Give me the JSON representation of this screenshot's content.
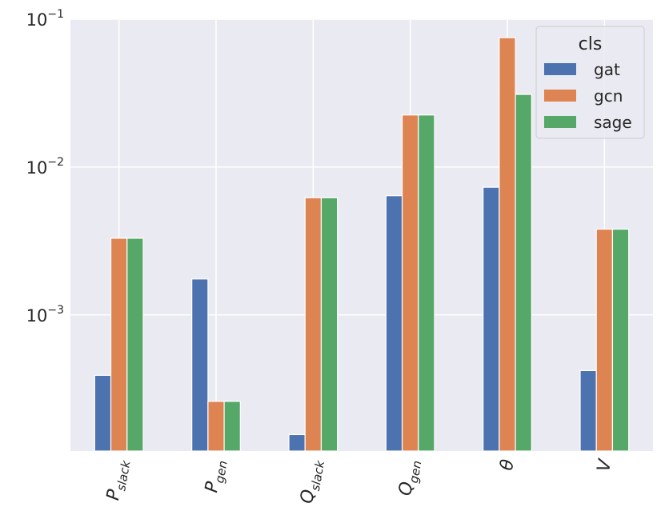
{
  "chart_data": {
    "type": "bar",
    "yscale": "log",
    "ylim": [
      0.00012,
      0.1
    ],
    "yticks": [
      {
        "value": 0.1,
        "base": "10",
        "exp": "−1"
      },
      {
        "value": 0.01,
        "base": "10",
        "exp": "−2"
      },
      {
        "value": 0.001,
        "base": "10",
        "exp": "−3"
      }
    ],
    "categories": [
      {
        "main": "P",
        "sub": "slack"
      },
      {
        "main": "P",
        "sub": "gen"
      },
      {
        "main": "Q",
        "sub": "slack"
      },
      {
        "main": "Q",
        "sub": "gen"
      },
      {
        "main": "θ",
        "sub": ""
      },
      {
        "main": "V",
        "sub": ""
      }
    ],
    "series": [
      {
        "name": "gat",
        "color": "#4c72b0",
        "values": [
          0.00039,
          0.00175,
          0.000155,
          0.0064,
          0.0073,
          0.00042
        ]
      },
      {
        "name": "gcn",
        "color": "#dd8452",
        "values": [
          0.0033,
          0.00026,
          0.0062,
          0.0225,
          0.075,
          0.0038
        ]
      },
      {
        "name": "sage",
        "color": "#55a868",
        "values": [
          0.0033,
          0.00026,
          0.0062,
          0.0225,
          0.031,
          0.0038
        ]
      }
    ],
    "legend": {
      "title": "cls",
      "position": "top-right"
    },
    "grid": true,
    "background": "#eaeaf2"
  }
}
